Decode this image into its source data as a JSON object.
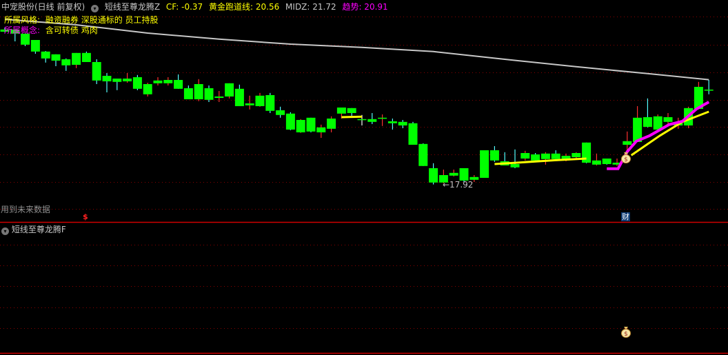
{
  "header": {
    "stock": "中宠股份(日线 前复权)",
    "indicator_icon": "chevron-down-icon",
    "indicator_name": "短线至尊龙腾Z",
    "cf": "CF: -0.37",
    "golden": "黄金跑道线: 20.56",
    "midz": "MIDZ: 21.72",
    "trend": "趋势: 20.91"
  },
  "info": {
    "style_label": "所属风格:",
    "style_value": "融资融券 深股通标的 员工持股",
    "concept_label": "所属概念:",
    "concept_value": "含可转债 鸡肉"
  },
  "future_data_label": "用到未来数据",
  "low_label": "←17.92",
  "markers": {
    "dollar": "$",
    "finance": "财",
    "money_bag_icon": "money-bag-icon"
  },
  "sub_panel": {
    "indicator_name": "短线至尊龙腾F"
  },
  "colors": {
    "candle_body": "#00ff00",
    "up_wick": "#ff3030",
    "down_wick": "#54ffff",
    "midz": "#c8c8c8",
    "golden": "#ffff00",
    "trend": "#ff00ff",
    "grid": "#8b0000",
    "separator": "#d00000"
  },
  "chart_data": {
    "type": "candlestick",
    "candle_format": [
      "high",
      "body_top",
      "body_bottom",
      "low",
      "dir"
    ],
    "candles": [
      [
        23.61,
        23.54,
        23.46,
        23.44,
        "down"
      ],
      [
        23.54,
        23.54,
        23.39,
        23.11,
        "down"
      ],
      [
        23.39,
        23.39,
        22.99,
        22.94,
        "down"
      ],
      [
        23.16,
        23.16,
        22.74,
        22.66,
        "down"
      ],
      [
        22.76,
        22.74,
        22.49,
        22.34,
        "down"
      ],
      [
        22.64,
        22.64,
        22.41,
        22.21,
        "down"
      ],
      [
        22.49,
        22.46,
        22.24,
        22.04,
        "down"
      ],
      [
        22.69,
        22.69,
        22.26,
        22.14,
        "up"
      ],
      [
        22.74,
        22.69,
        22.36,
        22.36,
        "down"
      ],
      [
        22.46,
        22.36,
        21.69,
        21.56,
        "down"
      ],
      [
        21.96,
        21.86,
        21.66,
        21.26,
        "down"
      ],
      [
        21.76,
        21.76,
        21.64,
        21.34,
        "down"
      ],
      [
        21.96,
        21.76,
        21.66,
        21.61,
        "up"
      ],
      [
        21.89,
        21.81,
        21.39,
        21.34,
        "down"
      ],
      [
        21.61,
        21.56,
        21.19,
        21.11,
        "up"
      ],
      [
        21.81,
        21.69,
        21.59,
        21.51,
        "up"
      ],
      [
        21.81,
        21.71,
        21.59,
        21.51,
        "up"
      ],
      [
        21.91,
        21.71,
        21.39,
        21.39,
        "down"
      ],
      [
        21.51,
        21.41,
        21.01,
        21.01,
        "down"
      ],
      [
        21.74,
        21.56,
        21.01,
        20.94,
        "up"
      ],
      [
        21.51,
        21.41,
        20.99,
        20.91,
        "down"
      ],
      [
        21.31,
        21.11,
        21.06,
        20.91,
        "up"
      ],
      [
        21.59,
        21.59,
        21.11,
        21.04,
        "up"
      ],
      [
        21.54,
        21.39,
        20.76,
        20.76,
        "down"
      ],
      [
        21.14,
        20.86,
        20.79,
        20.64,
        "up"
      ],
      [
        21.24,
        21.14,
        20.76,
        20.74,
        "up"
      ],
      [
        21.24,
        21.16,
        20.59,
        20.51,
        "down"
      ],
      [
        20.74,
        20.61,
        20.44,
        20.34,
        "down"
      ],
      [
        20.54,
        20.49,
        19.91,
        19.89,
        "down"
      ],
      [
        20.29,
        20.26,
        19.81,
        19.79,
        "up"
      ],
      [
        20.34,
        20.34,
        19.84,
        19.81,
        "down"
      ],
      [
        20.09,
        19.99,
        19.81,
        19.61,
        "up"
      ],
      [
        20.39,
        20.31,
        19.94,
        19.81,
        "up"
      ],
      [
        20.71,
        20.71,
        20.49,
        20.31,
        "up"
      ],
      [
        20.69,
        20.69,
        20.51,
        20.41,
        "down"
      ],
      [
        20.44,
        20.29,
        20.26,
        20.06,
        "flat"
      ],
      [
        20.51,
        20.29,
        20.19,
        20.11,
        "down"
      ],
      [
        20.46,
        20.34,
        20.31,
        20.04,
        "up"
      ],
      [
        20.31,
        20.21,
        20.14,
        19.91,
        "down"
      ],
      [
        20.26,
        20.19,
        20.06,
        19.96,
        "down"
      ],
      [
        20.19,
        20.14,
        19.36,
        19.36,
        "down"
      ],
      [
        19.41,
        19.39,
        18.59,
        18.59,
        "down"
      ],
      [
        18.69,
        18.51,
        17.99,
        17.92,
        "down"
      ],
      [
        18.46,
        18.26,
        17.99,
        17.96,
        "up"
      ],
      [
        18.46,
        18.34,
        18.24,
        18.21,
        "up"
      ],
      [
        18.51,
        18.51,
        18.06,
        17.99,
        "down"
      ],
      [
        18.26,
        18.19,
        18.09,
        18.01,
        "up"
      ],
      [
        19.16,
        19.16,
        18.16,
        18.16,
        "down"
      ],
      [
        19.31,
        19.16,
        18.79,
        18.74,
        "down"
      ],
      [
        19.09,
        18.76,
        18.61,
        18.61,
        "down"
      ],
      [
        19.19,
        18.66,
        18.54,
        18.51,
        "down"
      ],
      [
        19.14,
        19.06,
        18.86,
        18.79,
        "up"
      ],
      [
        19.06,
        19.01,
        18.79,
        18.79,
        "down"
      ],
      [
        19.09,
        19.04,
        18.84,
        18.64,
        "up"
      ],
      [
        19.16,
        19.04,
        18.84,
        18.84,
        "down"
      ],
      [
        19.04,
        18.96,
        18.84,
        18.76,
        "up"
      ],
      [
        19.09,
        19.06,
        18.91,
        18.81,
        "up"
      ],
      [
        19.44,
        19.44,
        18.71,
        18.69,
        "down"
      ],
      [
        19.04,
        18.79,
        18.64,
        18.61,
        "up"
      ],
      [
        18.86,
        18.86,
        18.66,
        18.64,
        "down"
      ],
      [
        18.86,
        18.71,
        18.64,
        18.59,
        "up"
      ],
      [
        19.84,
        19.49,
        19.36,
        19.11,
        "up"
      ],
      [
        20.76,
        20.34,
        19.46,
        19.46,
        "up"
      ],
      [
        21.04,
        20.36,
        20.01,
        19.99,
        "down"
      ],
      [
        20.46,
        20.39,
        19.91,
        19.91,
        "up"
      ],
      [
        20.51,
        20.36,
        20.19,
        20.11,
        "up"
      ],
      [
        20.34,
        20.16,
        20.06,
        19.94,
        "up"
      ],
      [
        20.74,
        20.69,
        20.06,
        19.96,
        "up"
      ],
      [
        21.64,
        21.46,
        20.66,
        20.66,
        "up"
      ],
      [
        21.71,
        21.36,
        21.34,
        21.19,
        "down"
      ]
    ],
    "lines": {
      "midz": [
        [
          0,
          23.91
        ],
        [
          7,
          23.71
        ],
        [
          14,
          23.41
        ],
        [
          21,
          23.19
        ],
        [
          28,
          23.01
        ],
        [
          35,
          22.89
        ],
        [
          42,
          22.74
        ],
        [
          49,
          22.46
        ],
        [
          56,
          22.19
        ],
        [
          63,
          21.94
        ],
        [
          69,
          21.72
        ]
      ],
      "golden_segments": [
        [
          [
            33,
            20.36
          ],
          [
            34,
            20.37
          ],
          [
            35,
            20.38
          ]
        ],
        [
          [
            48,
            18.66
          ],
          [
            51,
            18.73
          ],
          [
            54,
            18.8
          ],
          [
            57,
            18.86
          ]
        ],
        [
          [
            61.4,
            18.98
          ],
          [
            64.2,
            19.69
          ],
          [
            66.4,
            20.19
          ],
          [
            69,
            20.56
          ]
        ]
      ],
      "trend": [
        [
          59,
          18.49
        ],
        [
          60.1,
          18.49
        ],
        [
          61,
          19.11
        ],
        [
          61.9,
          19.49
        ],
        [
          63.2,
          19.69
        ],
        [
          65.1,
          20.09
        ],
        [
          66.4,
          20.21
        ],
        [
          67.8,
          20.66
        ],
        [
          69,
          20.91
        ]
      ]
    },
    "low_marker": {
      "index": 42,
      "value": 17.92
    },
    "grid": true
  }
}
